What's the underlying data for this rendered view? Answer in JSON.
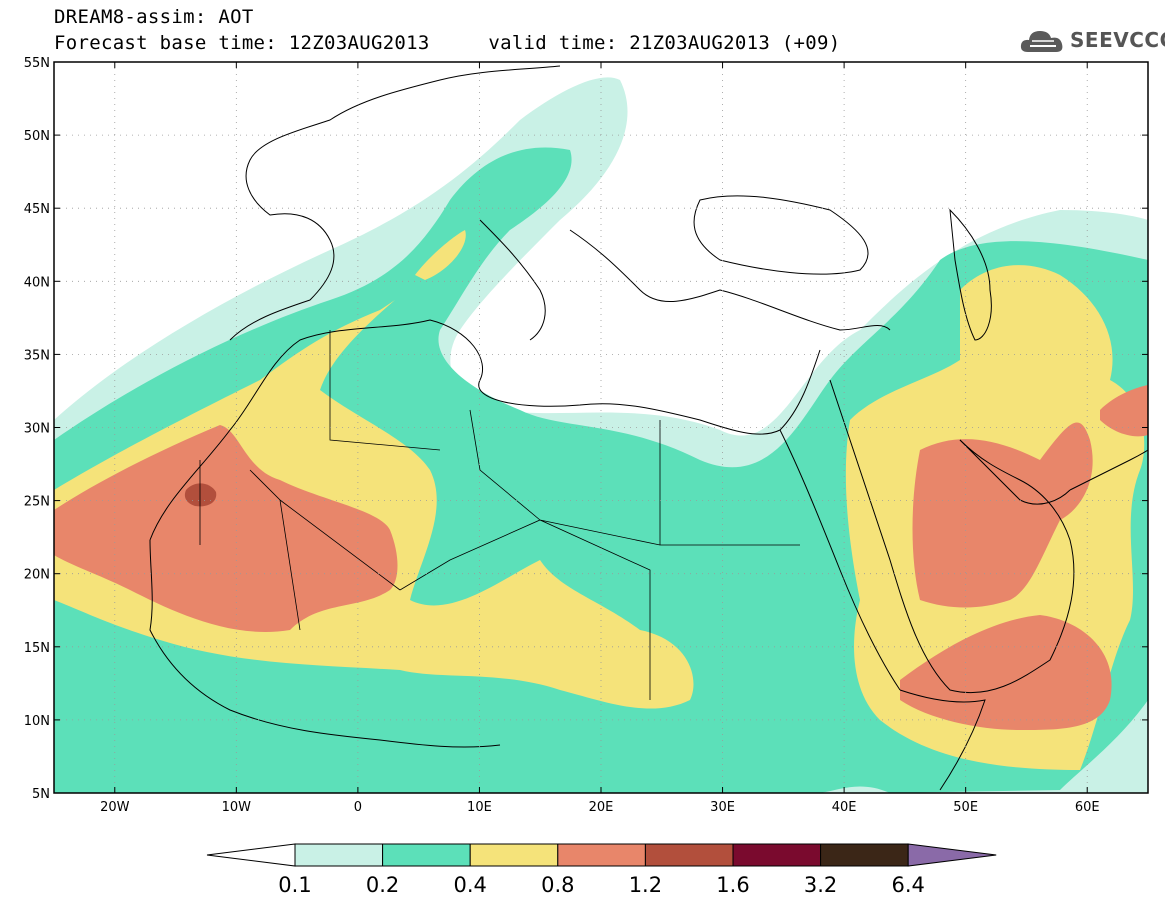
{
  "header": {
    "title_line1": "DREAM8-assim: AOT",
    "title_line2": "Forecast base time: 12Z03AUG2013     valid time: 21Z03AUG2013 (+09)",
    "logo_text": "SEEVCCC",
    "logo_icon": "cloud-logo-icon"
  },
  "map": {
    "lon_range": [
      -25,
      65
    ],
    "lat_range": [
      5,
      55
    ],
    "lat_ticks": [
      {
        "value": 55,
        "label": "55N"
      },
      {
        "value": 50,
        "label": "50N"
      },
      {
        "value": 45,
        "label": "45N"
      },
      {
        "value": 40,
        "label": "40N"
      },
      {
        "value": 35,
        "label": "35N"
      },
      {
        "value": 30,
        "label": "30N"
      },
      {
        "value": 25,
        "label": "25N"
      },
      {
        "value": 20,
        "label": "20N"
      },
      {
        "value": 15,
        "label": "15N"
      },
      {
        "value": 10,
        "label": "10N"
      },
      {
        "value": 5,
        "label": "5N"
      }
    ],
    "lon_ticks": [
      {
        "value": -20,
        "label": "20W"
      },
      {
        "value": -10,
        "label": "10W"
      },
      {
        "value": 0,
        "label": "0"
      },
      {
        "value": 10,
        "label": "10E"
      },
      {
        "value": 20,
        "label": "20E"
      },
      {
        "value": 30,
        "label": "30E"
      },
      {
        "value": 40,
        "label": "40E"
      },
      {
        "value": 50,
        "label": "50E"
      },
      {
        "value": 60,
        "label": "60E"
      }
    ],
    "grid": "dotted",
    "level_colors": {
      "c1": "#c9f1e6",
      "c2": "#5ce0b9",
      "c3": "#f5e37a",
      "c4": "#e8866a",
      "c5": "#b24f3c",
      "c6": "#7a0a2e",
      "c7": "#3b2617",
      "c8": "#8a6aa8"
    },
    "coastline_color": "#000000"
  },
  "colorbar": {
    "labels": [
      "0.1",
      "0.2",
      "0.4",
      "0.8",
      "1.2",
      "1.6",
      "3.2",
      "6.4"
    ],
    "colors": [
      "#ffffff",
      "#c9f1e6",
      "#5ce0b9",
      "#f5e37a",
      "#e8866a",
      "#b24f3c",
      "#7a0a2e",
      "#3b2617",
      "#8a6aa8"
    ]
  }
}
